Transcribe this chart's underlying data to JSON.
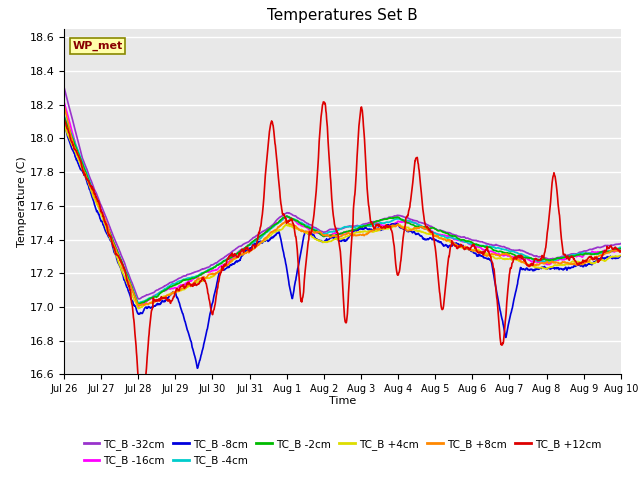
{
  "title": "Temperatures Set B",
  "xlabel": "Time",
  "ylabel": "Temperature (C)",
  "ylim": [
    16.6,
    18.65
  ],
  "yticks": [
    16.6,
    16.8,
    17.0,
    17.2,
    17.4,
    17.6,
    17.8,
    18.0,
    18.2,
    18.4,
    18.6
  ],
  "xtick_labels": [
    "Jul 26",
    "Jul 27",
    "Jul 28",
    "Jul 29",
    "Jul 30",
    "Jul 31",
    "Aug 1",
    "Aug 2",
    "Aug 3",
    "Aug 4",
    "Aug 5",
    "Aug 6",
    "Aug 7",
    "Aug 8",
    "Aug 9",
    "Aug 10"
  ],
  "series_colors": {
    "TC_B -32cm": "#9933cc",
    "TC_B -16cm": "#ff00ff",
    "TC_B -8cm": "#0000dd",
    "TC_B -4cm": "#00cccc",
    "TC_B -2cm": "#00bb00",
    "TC_B +4cm": "#dddd00",
    "TC_B +8cm": "#ff8800",
    "TC_B +12cm": "#dd0000"
  },
  "wp_met_box_facecolor": "#ffffaa",
  "wp_met_box_edgecolor": "#888800",
  "wp_met_text_color": "#880000",
  "fig_facecolor": "#ffffff",
  "axes_facecolor": "#e8e8e8",
  "grid_color": "#ffffff",
  "n_points": 1500,
  "legend_ncol_row1": 6,
  "legend_ncol_row2": 2
}
